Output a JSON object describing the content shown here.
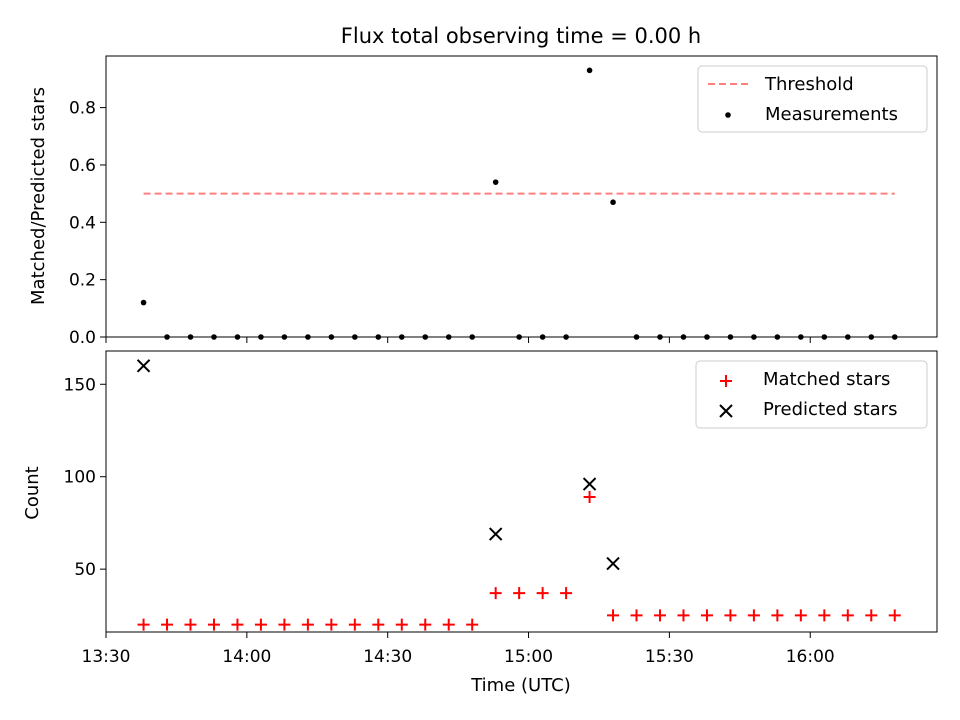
{
  "chart_data": [
    {
      "type": "scatter",
      "title": "Flux total observing time = 0.00 h",
      "xlabel": "",
      "ylabel": "Matched/Predicted stars",
      "xlim_minutes": [
        1290,
        1467
      ],
      "ylim": [
        0,
        0.98
      ],
      "yticks": [
        0.0,
        0.2,
        0.4,
        0.6,
        0.8
      ],
      "ytick_labels": [
        "0.0",
        "0.2",
        "0.4",
        "0.6",
        "0.8"
      ],
      "xtick_minutes": [
        1290,
        1320,
        1350,
        1380,
        1410,
        1440
      ],
      "legend_position": "top-right",
      "series": [
        {
          "name": "Threshold",
          "kind": "dashed-line",
          "color": "#ff7f7f",
          "x": [
            1298,
            1458
          ],
          "y": [
            0.5,
            0.5
          ]
        },
        {
          "name": "Measurements",
          "kind": "dot",
          "color": "#000000",
          "x": [
            1298,
            1303,
            1308,
            1313,
            1318,
            1323,
            1328,
            1333,
            1338,
            1343,
            1348,
            1353,
            1358,
            1363,
            1368,
            1373,
            1378,
            1383,
            1388,
            1393,
            1398,
            1403,
            1408,
            1413,
            1418,
            1423,
            1428,
            1433,
            1438,
            1443,
            1448,
            1453,
            1458
          ],
          "y": [
            0.12,
            0,
            0,
            0,
            0,
            0,
            0,
            0,
            0,
            0,
            0,
            0,
            0,
            0,
            0,
            0.54,
            0,
            0,
            0,
            0.93,
            0.47,
            0,
            0,
            0,
            0,
            0,
            0,
            0,
            0,
            0,
            0,
            0,
            0
          ]
        }
      ]
    },
    {
      "type": "scatter",
      "title": "",
      "xlabel": "Time (UTC)",
      "ylabel": "Count",
      "xlim_minutes": [
        1290,
        1467
      ],
      "ylim": [
        16,
        168
      ],
      "yticks": [
        50,
        100,
        150
      ],
      "ytick_labels": [
        "50",
        "100",
        "150"
      ],
      "xtick_minutes": [
        1290,
        1320,
        1350,
        1380,
        1410,
        1440
      ],
      "xtick_labels": [
        "13:30",
        "14:00",
        "14:30",
        "15:00",
        "15:30",
        "16:00"
      ],
      "legend_position": "top-right",
      "series": [
        {
          "name": "Matched stars",
          "kind": "plus",
          "color": "#ff0000",
          "x": [
            1298,
            1303,
            1308,
            1313,
            1318,
            1323,
            1328,
            1333,
            1338,
            1343,
            1348,
            1353,
            1358,
            1363,
            1368,
            1373,
            1378,
            1383,
            1388,
            1393,
            1398,
            1403,
            1408,
            1413,
            1418,
            1423,
            1428,
            1433,
            1438,
            1443,
            1448,
            1453,
            1458
          ],
          "y": [
            20,
            20,
            20,
            20,
            20,
            20,
            20,
            20,
            20,
            20,
            20,
            20,
            20,
            20,
            20,
            37,
            37,
            37,
            37,
            89,
            25,
            25,
            25,
            25,
            25,
            25,
            25,
            25,
            25,
            25,
            25,
            25,
            25
          ]
        },
        {
          "name": "Predicted stars",
          "kind": "cross",
          "color": "#000000",
          "x": [
            1298,
            1373,
            1393,
            1398
          ],
          "y": [
            160,
            69,
            96,
            53
          ]
        }
      ]
    }
  ]
}
